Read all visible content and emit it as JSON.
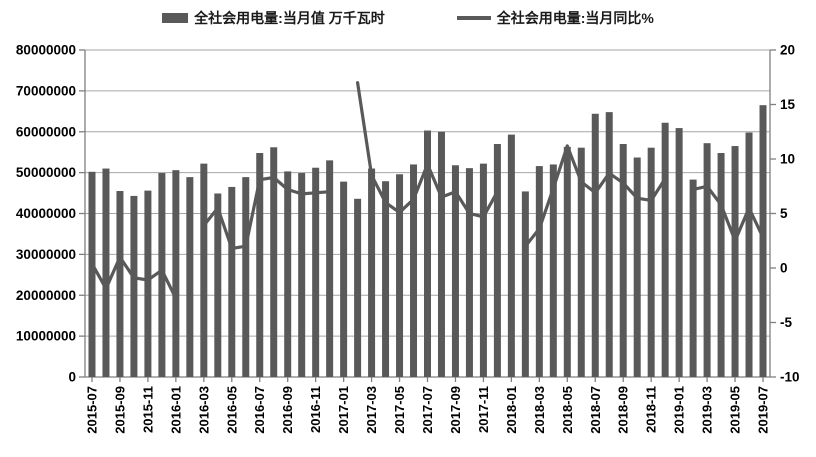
{
  "legend": {
    "bar_label": "全社会用电量:当月值 万千瓦时",
    "line_label": "全社会用电量:当月同比%"
  },
  "chart_data": {
    "type": "combo",
    "categories": [
      "2015-07",
      "2015-08",
      "2015-09",
      "2015-10",
      "2015-11",
      "2015-12",
      "2016-01",
      "2016-02",
      "2016-03",
      "2016-04",
      "2016-05",
      "2016-06",
      "2016-07",
      "2016-08",
      "2016-09",
      "2016-10",
      "2016-11",
      "2016-12",
      "2017-01",
      "2017-02",
      "2017-03",
      "2017-04",
      "2017-05",
      "2017-06",
      "2017-07",
      "2017-08",
      "2017-09",
      "2017-10",
      "2017-11",
      "2017-12",
      "2018-01",
      "2018-02",
      "2018-03",
      "2018-04",
      "2018-05",
      "2018-06",
      "2018-07",
      "2018-08",
      "2018-09",
      "2018-10",
      "2018-11",
      "2018-12",
      "2019-01",
      "2019-02",
      "2019-03",
      "2019-04",
      "2019-05",
      "2019-06",
      "2019-07"
    ],
    "series": [
      {
        "name": "全社会用电量:当月值 万千瓦时",
        "type": "bar",
        "axis": "left",
        "values": [
          50200000,
          51000000,
          45500000,
          44300000,
          45600000,
          49900000,
          50600000,
          48900000,
          52200000,
          44900000,
          46500000,
          48900000,
          54800000,
          56200000,
          50300000,
          49900000,
          51200000,
          53000000,
          47800000,
          43600000,
          51000000,
          47900000,
          49600000,
          52000000,
          60300000,
          60000000,
          51800000,
          51100000,
          52200000,
          57000000,
          59300000,
          45400000,
          51600000,
          52000000,
          56300000,
          56100000,
          64400000,
          64800000,
          57000000,
          53700000,
          56100000,
          62200000,
          60900000,
          48300000,
          57200000,
          54800000,
          56500000,
          59800000,
          66500000
        ]
      },
      {
        "name": "全社会用电量:当月同比%",
        "type": "line",
        "axis": "right",
        "values": [
          0.4,
          -1.9,
          1.0,
          -0.9,
          -1.1,
          -0.2,
          -2.8,
          null,
          3.9,
          5.5,
          1.8,
          2.0,
          8.1,
          8.3,
          7.2,
          6.8,
          6.9,
          7.0,
          null,
          17.0,
          8.5,
          6.0,
          5.1,
          6.3,
          9.5,
          6.5,
          7.0,
          5.0,
          4.7,
          7.0,
          null,
          2.0,
          3.6,
          7.3,
          11.2,
          7.9,
          6.9,
          8.7,
          7.8,
          6.4,
          6.2,
          8.2,
          null,
          7.2,
          7.5,
          5.8,
          2.5,
          5.5,
          2.8
        ]
      }
    ],
    "left_axis": {
      "min": 0,
      "max": 80000000,
      "step": 10000000
    },
    "right_axis": {
      "min": -10,
      "max": 20,
      "step": 5
    },
    "x_tick_every": 2,
    "grid": true,
    "legend_position": "top",
    "colors": {
      "bar": "#595959",
      "line": "#595959",
      "grid": "#a6a6a6",
      "axis": "#7f7f7f",
      "text": "#000000",
      "background": "#ffffff"
    }
  }
}
